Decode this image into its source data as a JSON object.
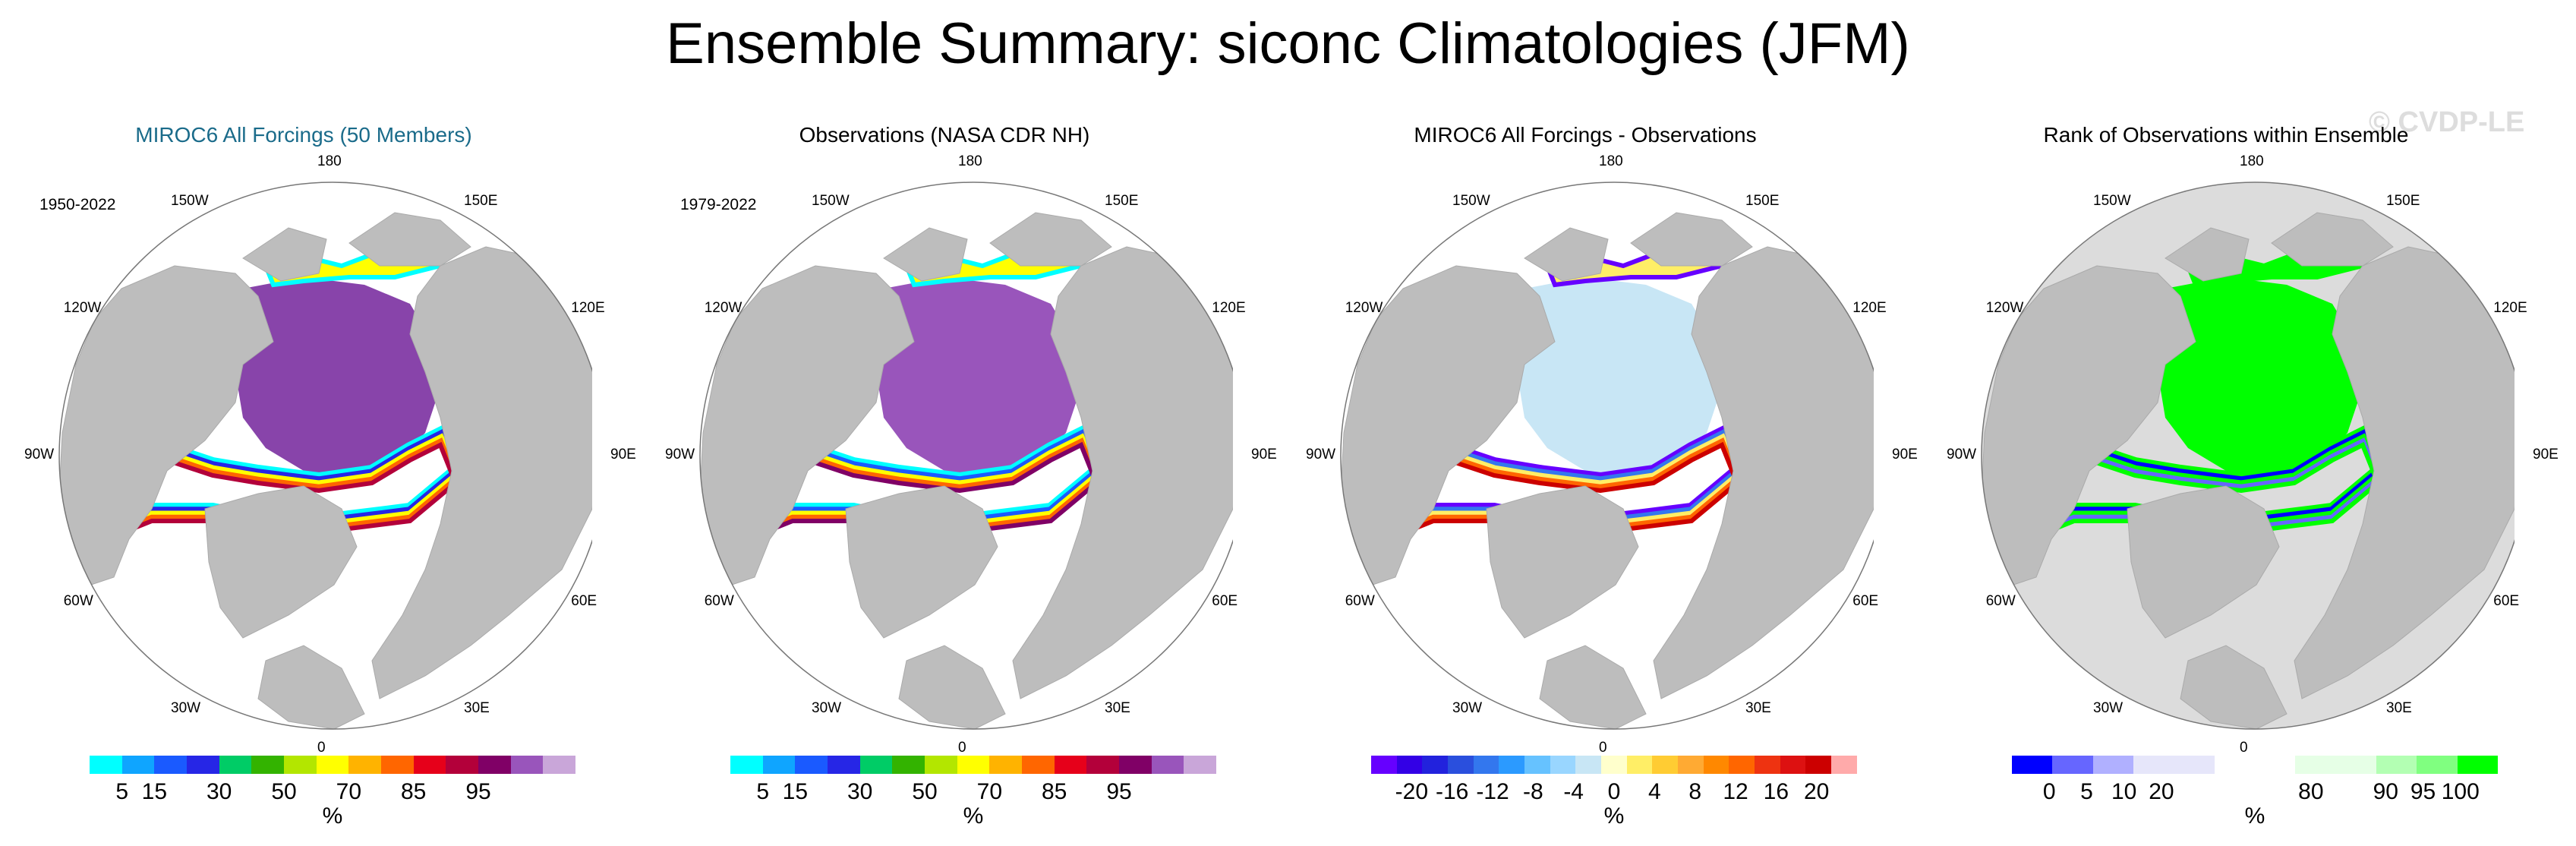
{
  "figure": {
    "title": "Ensemble Summary: siconc Climatologies (JFM)",
    "watermark": "© CVDP-LE"
  },
  "longitude_labels": [
    "180",
    "150W",
    "150E",
    "120W",
    "120E",
    "90W",
    "90E",
    "60W",
    "60E",
    "30W",
    "30E",
    "0"
  ],
  "panels": [
    {
      "title": "MIROC6 All Forcings (50 Members)",
      "title_color": "#1a6b8a",
      "period": "1950-2022",
      "unit": "%",
      "colorbar": {
        "colors": [
          "#00ffff",
          "#0fa5ff",
          "#1a5aff",
          "#2626e6",
          "#00cc66",
          "#33b300",
          "#b3e600",
          "#ffff00",
          "#ffb300",
          "#ff6600",
          "#e6001a",
          "#b3003a",
          "#800066",
          "#9955bb",
          "#c9a6d9"
        ],
        "ticks": [
          "5",
          "15",
          "30",
          "50",
          "70",
          "85",
          "95"
        ]
      },
      "field": "ensemble mean sea ice concentration"
    },
    {
      "title": "Observations (NASA CDR NH)",
      "title_color": "#000000",
      "period": "1979-2022",
      "unit": "%",
      "colorbar": {
        "colors": [
          "#00ffff",
          "#0fa5ff",
          "#1a5aff",
          "#2626e6",
          "#00cc66",
          "#33b300",
          "#b3e600",
          "#ffff00",
          "#ffb300",
          "#ff6600",
          "#e6001a",
          "#b3003a",
          "#800066",
          "#9955bb",
          "#c9a6d9"
        ],
        "ticks": [
          "5",
          "15",
          "30",
          "50",
          "70",
          "85",
          "95"
        ]
      },
      "field": "observed sea ice concentration"
    },
    {
      "title": "MIROC6 All Forcings - Observations",
      "title_color": "#000000",
      "period": "",
      "unit": "%",
      "colorbar": {
        "colors": [
          "#6600ff",
          "#3300e6",
          "#2222dd",
          "#2a4fdd",
          "#3377ee",
          "#2b9aff",
          "#66c2ff",
          "#99d6ff",
          "#c8e6f5",
          "#ffffcc",
          "#ffee66",
          "#ffcc33",
          "#ffaa33",
          "#ff8800",
          "#ff6600",
          "#ee3311",
          "#dd1111",
          "#cc0000",
          "#ffaaaa"
        ],
        "ticks": [
          "-20",
          "-16",
          "-12",
          "-8",
          "-4",
          "0",
          "4",
          "8",
          "12",
          "16",
          "20"
        ]
      },
      "field": "difference"
    },
    {
      "title": "Rank of Observations within Ensemble",
      "title_color": "#000000",
      "period": "",
      "unit": "%",
      "colorbar": {
        "colors": [
          "#0000ff",
          "#6666ff",
          "#b0b0ff",
          "#e6e6fa",
          "#e6e6fa",
          "#ffffff",
          "#ffffff",
          "#e6ffe6",
          "#e6ffe6",
          "#b3ffb3",
          "#80ff80",
          "#00ff00"
        ],
        "ticks": [
          "0",
          "5",
          "10",
          "20",
          "80",
          "90",
          "95",
          "100"
        ]
      },
      "field": "rank"
    }
  ]
}
